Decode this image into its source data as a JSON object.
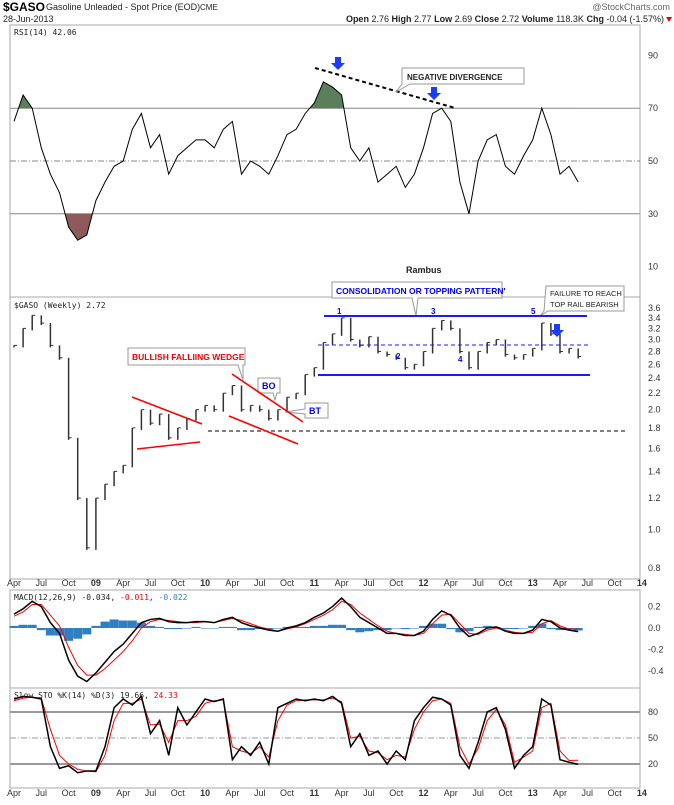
{
  "header": {
    "symbol": "$GASO",
    "name": "Gasoline Unleaded - Spot Price (EOD)",
    "exchange": "CME",
    "date": "28-Jun-2013",
    "watermark": "@StockCharts.com",
    "open_label": "Open",
    "open": "2.76",
    "high_label": "High",
    "high": "2.77",
    "low_label": "Low",
    "low": "2.69",
    "close_label": "Close",
    "close": "2.72",
    "volume_label": "Volume",
    "volume": "118.3K",
    "chg_label": "Chg",
    "chg": "-0.04 (-1.57%)",
    "chg_icon": "down-triangle-icon"
  },
  "colors": {
    "up": "#000000",
    "signal": "#ff0000",
    "hist": "#2f7fc1",
    "rsi_over": "#5a7f5a",
    "rsi_under": "#8c5a5a",
    "annot_blue": "#0000ff",
    "annot_red": "#ff0000"
  },
  "chart_data": [
    {
      "type": "line",
      "panel": "rsi",
      "legend": "RSI(14) 42.06",
      "ylim": [
        0,
        100
      ],
      "y_ticks": [
        "90",
        "70",
        "50",
        "30",
        "10"
      ],
      "reference_lines": [
        70,
        50,
        30
      ],
      "x_start": "Apr 2008",
      "x_step": "month",
      "values": [
        65,
        75,
        70,
        55,
        45,
        38,
        25,
        20,
        22,
        35,
        42,
        48,
        50,
        62,
        68,
        55,
        60,
        45,
        52,
        55,
        58,
        58,
        55,
        62,
        65,
        45,
        50,
        48,
        45,
        52,
        60,
        62,
        68,
        72,
        80,
        78,
        75,
        55,
        50,
        55,
        42,
        45,
        48,
        40,
        45,
        55,
        68,
        70,
        65,
        42,
        30,
        50,
        58,
        60,
        48,
        45,
        52,
        58,
        70,
        60,
        45,
        48,
        42.06
      ]
    },
    {
      "type": "line",
      "panel": "price",
      "legend": "$GASO (Weekly) 2.72",
      "scale": "log",
      "ylim": [
        0.78,
        3.7
      ],
      "y_ticks": [
        "3.6",
        "3.4",
        "3.2",
        "3.0",
        "2.8",
        "2.6",
        "2.4",
        "2.2",
        "2.0",
        "1.8",
        "1.6",
        "1.4",
        "1.2",
        "1.0",
        "0.8"
      ],
      "x_start": "Apr 2008",
      "x_step": "month",
      "values": [
        2.9,
        3.2,
        3.45,
        3.3,
        2.9,
        2.7,
        1.7,
        1.2,
        0.9,
        1.2,
        1.3,
        1.4,
        1.45,
        1.8,
        2.0,
        1.85,
        1.95,
        1.7,
        1.8,
        1.9,
        2.0,
        2.05,
        2.0,
        2.2,
        2.3,
        2.0,
        2.05,
        2.0,
        1.9,
        2.0,
        2.15,
        2.2,
        2.45,
        2.55,
        2.95,
        3.1,
        3.4,
        3.0,
        2.9,
        3.05,
        2.8,
        2.75,
        2.7,
        2.55,
        2.6,
        2.8,
        3.2,
        3.35,
        3.2,
        2.8,
        2.55,
        2.8,
        2.95,
        3.0,
        2.75,
        2.7,
        2.75,
        2.85,
        3.3,
        3.1,
        2.8,
        2.85,
        2.72
      ],
      "annotations": {
        "rambus": "Rambus",
        "consolidation": "CONSOLIDATION OR TOPPING PATTERN'",
        "failure_1": "FAILURE TO REACH",
        "failure_2": "TOP RAIL BEARISH",
        "wedge": "BULLISH FALLIING WEDGE",
        "bo": "BO",
        "bt": "BT",
        "n1": "1",
        "n2": "2",
        "n3": "3",
        "n4": "4",
        "n5": "5",
        "divergence": "NEGATIVE DIVERGENCE"
      }
    },
    {
      "type": "line",
      "panel": "macd",
      "legend_name": "MACD(12,26,9)",
      "legend_macd": "-0.034",
      "legend_signal": "-0.011",
      "legend_hist": "-0.022",
      "ylim": [
        -0.55,
        0.32
      ],
      "y_ticks": [
        "0.2",
        "0.0",
        "-0.2",
        "-0.4"
      ],
      "x_start": "Apr 2008",
      "x_step": "month",
      "series": [
        {
          "values": [
            0.13,
            0.18,
            0.25,
            0.2,
            0.05,
            -0.05,
            -0.3,
            -0.45,
            -0.5,
            -0.42,
            -0.32,
            -0.22,
            -0.15,
            -0.05,
            0.05,
            0.08,
            0.09,
            0.06,
            0.05,
            0.05,
            0.06,
            0.06,
            0.05,
            0.08,
            0.1,
            0.05,
            0.02,
            0.0,
            -0.02,
            -0.03,
            0.0,
            0.02,
            0.05,
            0.1,
            0.14,
            0.2,
            0.28,
            0.2,
            0.1,
            0.05,
            0.0,
            -0.05,
            -0.05,
            -0.07,
            -0.07,
            -0.03,
            0.08,
            0.16,
            0.12,
            0.0,
            -0.08,
            -0.05,
            0.0,
            0.01,
            -0.03,
            -0.05,
            -0.05,
            -0.02,
            0.08,
            0.06,
            0.0,
            -0.02,
            -0.034
          ]
        },
        {
          "values": [
            0.11,
            0.15,
            0.22,
            0.22,
            0.12,
            0.02,
            -0.18,
            -0.35,
            -0.44,
            -0.44,
            -0.38,
            -0.3,
            -0.22,
            -0.12,
            0.0,
            0.06,
            0.08,
            0.07,
            0.06,
            0.05,
            0.05,
            0.06,
            0.05,
            0.07,
            0.09,
            0.07,
            0.04,
            0.01,
            -0.01,
            -0.03,
            -0.01,
            0.01,
            0.04,
            0.08,
            0.12,
            0.17,
            0.25,
            0.22,
            0.14,
            0.08,
            0.02,
            -0.03,
            -0.05,
            -0.06,
            -0.07,
            -0.05,
            0.04,
            0.12,
            0.13,
            0.04,
            -0.05,
            -0.06,
            -0.02,
            0.0,
            -0.02,
            -0.04,
            -0.05,
            -0.04,
            0.04,
            0.07,
            0.02,
            -0.01,
            -0.011
          ]
        }
      ]
    },
    {
      "type": "line",
      "panel": "stochastic",
      "legend_name": "Slow STO %K(14) %D(3)",
      "legend_k": "19.66",
      "legend_d": "24.33",
      "ylim": [
        0,
        100
      ],
      "y_ticks": [
        "80",
        "50",
        "20"
      ],
      "reference_lines": [
        80,
        50,
        20
      ],
      "x_start": "Apr 2008",
      "x_step": "month",
      "series": [
        {
          "values": [
            95,
            98,
            97,
            95,
            40,
            15,
            18,
            10,
            12,
            12,
            40,
            85,
            95,
            88,
            98,
            55,
            70,
            30,
            85,
            65,
            80,
            95,
            92,
            95,
            25,
            40,
            30,
            45,
            20,
            85,
            90,
            95,
            93,
            95,
            93,
            98,
            90,
            40,
            55,
            30,
            35,
            20,
            35,
            25,
            70,
            85,
            97,
            95,
            88,
            30,
            15,
            45,
            80,
            85,
            60,
            15,
            30,
            40,
            95,
            88,
            25,
            22,
            19.66
          ]
        },
        {
          "values": [
            93,
            96,
            97,
            96,
            60,
            30,
            20,
            14,
            12,
            11,
            30,
            70,
            90,
            90,
            95,
            65,
            66,
            45,
            70,
            70,
            75,
            90,
            93,
            94,
            40,
            35,
            32,
            40,
            28,
            70,
            88,
            93,
            94,
            94,
            94,
            96,
            92,
            50,
            52,
            35,
            33,
            25,
            30,
            28,
            60,
            80,
            93,
            95,
            90,
            40,
            20,
            38,
            70,
            83,
            65,
            22,
            28,
            35,
            85,
            90,
            35,
            24,
            24.33
          ]
        }
      ]
    }
  ],
  "x_axis": {
    "labels": [
      "Apr",
      "Jul",
      "Oct",
      "09",
      "Apr",
      "Jul",
      "Oct",
      "10",
      "Apr",
      "Jul",
      "Oct",
      "11",
      "Apr",
      "Jul",
      "Oct",
      "12",
      "Apr",
      "Jul",
      "Oct",
      "13",
      "Apr",
      "Jul",
      "Oct",
      "14"
    ]
  }
}
